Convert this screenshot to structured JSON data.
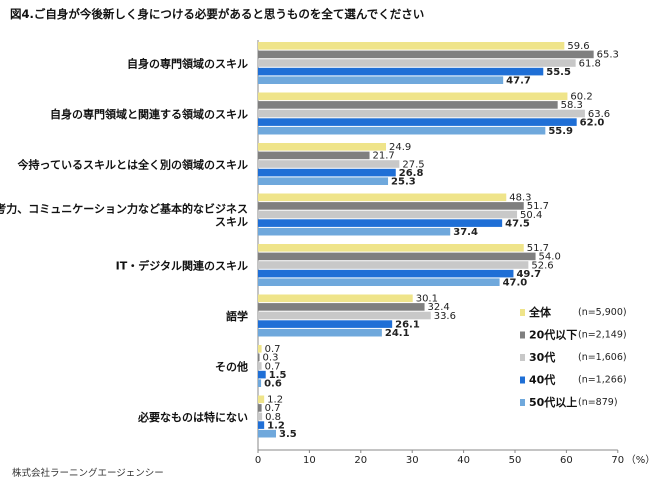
{
  "page": {
    "title": "図4.ご自身が今後新しく身につける必要があると思うものを全て選んでください",
    "source": "株式会社ラーニングエージェンシー"
  },
  "chart_data": {
    "type": "bar",
    "orientation": "horizontal",
    "title": "図4.ご自身が今後新しく身につける必要があると思うものを全て選んでください",
    "xlabel": "（%）",
    "xlim": [
      0,
      70
    ],
    "xticks": [
      0,
      10,
      20,
      30,
      40,
      50,
      60,
      70
    ],
    "categories": [
      [
        "自身の専門領域のスキル"
      ],
      [
        "自身の専門領域と関連する領域のスキル"
      ],
      [
        "今持っているスキルとは全く別の領域のスキル"
      ],
      [
        "思考力、コミュニケーション力など基本的なビジネス",
        "スキル"
      ],
      [
        "IT・デジタル関連のスキル"
      ],
      [
        "語学"
      ],
      [
        "その他"
      ],
      [
        "必要なものは特にない"
      ]
    ],
    "series": [
      {
        "name": "全体",
        "n": "(n=5,900)",
        "color": "#EFE48A",
        "values": [
          59.6,
          60.2,
          24.9,
          48.3,
          51.7,
          30.1,
          0.7,
          1.2
        ]
      },
      {
        "name": "20代以下",
        "n": "(n=2,149)",
        "color": "#7F7F7F",
        "values": [
          65.3,
          58.3,
          21.7,
          51.7,
          54.0,
          32.4,
          0.3,
          0.7
        ]
      },
      {
        "name": "30代",
        "n": "(n=1,606)",
        "color": "#C8C8C8",
        "values": [
          61.8,
          63.6,
          27.5,
          50.4,
          52.6,
          33.6,
          0.7,
          0.8
        ]
      },
      {
        "name": "40代",
        "n": "(n=1,266)",
        "color": "#1F6FD6",
        "values": [
          55.5,
          62.0,
          26.8,
          47.5,
          49.7,
          26.1,
          1.5,
          1.2
        ]
      },
      {
        "name": "50代以上",
        "n": "(n=879)",
        "color": "#6FA8DC",
        "values": [
          47.7,
          55.9,
          25.3,
          37.4,
          47.0,
          24.1,
          0.6,
          3.5
        ]
      }
    ],
    "legend": "bottom-right",
    "grid": false
  }
}
